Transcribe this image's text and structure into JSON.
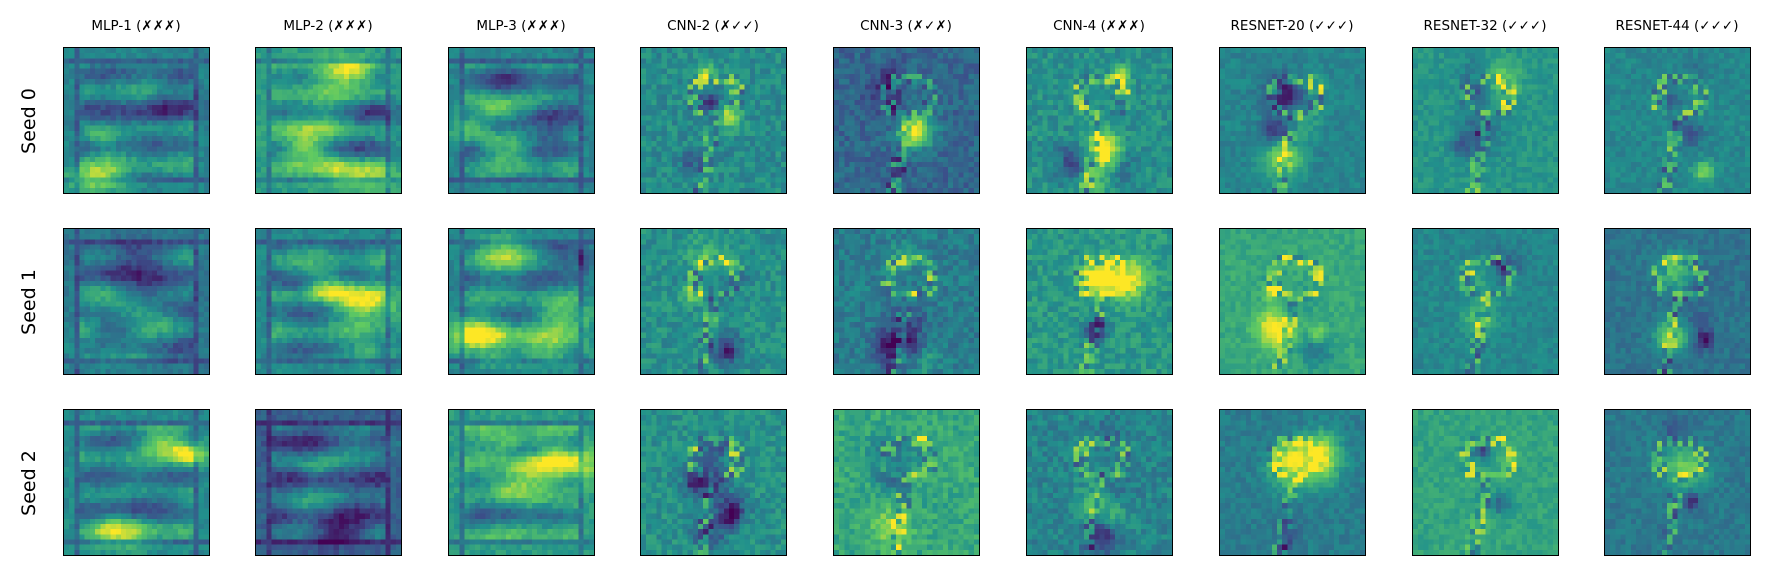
{
  "columns": [
    {
      "label": "MLP-1 (✗✗✗)",
      "kind": "mlp"
    },
    {
      "label": "MLP-2 (✗✗✗)",
      "kind": "mlp"
    },
    {
      "label": "MLP-3 (✗✗✗)",
      "kind": "mlp"
    },
    {
      "label": "CNN-2 (✗✓✓)",
      "kind": "cnn"
    },
    {
      "label": "CNN-3 (✗✓✗)",
      "kind": "cnn"
    },
    {
      "label": "CNN-4 (✗✗✗)",
      "kind": "cnn"
    },
    {
      "label": "RESNET-20 (✓✓✓)",
      "kind": "resnet"
    },
    {
      "label": "RESNET-32 (✓✓✓)",
      "kind": "resnet"
    },
    {
      "label": "RESNET-44 (✓✓✓)",
      "kind": "resnet"
    }
  ],
  "rows": [
    {
      "label": "Seed 0"
    },
    {
      "label": "Seed 1"
    },
    {
      "label": "Seed 2"
    }
  ],
  "colormap": "viridis",
  "colormap_stops": [
    "#440154",
    "#3b528b",
    "#21918c",
    "#5ec962",
    "#fde725"
  ],
  "panel_background": [
    [
      0.45,
      0.55,
      0.45,
      0.48,
      0.33,
      0.5,
      0.45,
      0.52,
      0.46
    ],
    [
      0.4,
      0.47,
      0.44,
      0.5,
      0.42,
      0.53,
      0.6,
      0.46,
      0.38
    ],
    [
      0.47,
      0.3,
      0.55,
      0.5,
      0.6,
      0.45,
      0.42,
      0.58,
      0.4
    ]
  ]
}
